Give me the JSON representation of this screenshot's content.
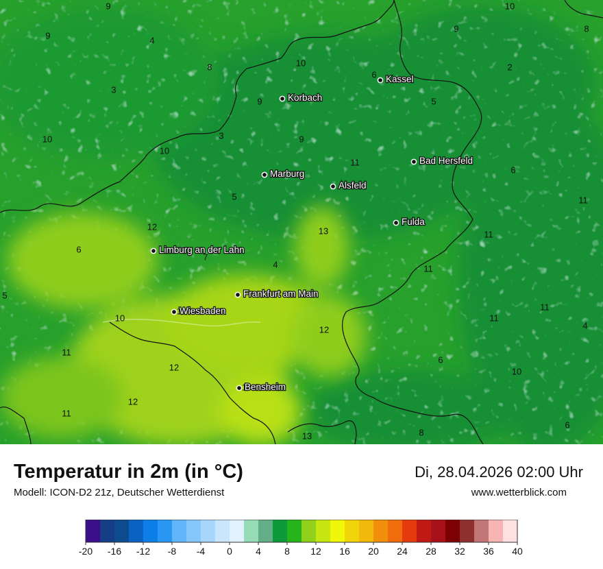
{
  "map": {
    "cities": [
      {
        "name": "Kassel"
      },
      {
        "name": "Korbach"
      },
      {
        "name": "Marburg"
      },
      {
        "name": "Alsfeld"
      },
      {
        "name": "Bad Hersfeld"
      },
      {
        "name": "Fulda"
      },
      {
        "name": "Limburg an der Lahn"
      },
      {
        "name": "Frankfurt am Main"
      },
      {
        "name": "Wiesbaden"
      },
      {
        "name": "Bensheim"
      }
    ],
    "value_labels": [
      "9",
      "10",
      "9",
      "9",
      "8",
      "4",
      "8",
      "10",
      "6",
      "2",
      "3",
      "9",
      "5",
      "10",
      "3",
      "9",
      "10",
      "11",
      "6",
      "5",
      "11",
      "12",
      "13",
      "6",
      "7",
      "4",
      "11",
      "11",
      "5",
      "10",
      "11",
      "12",
      "11",
      "11",
      "10",
      "6",
      "8",
      "12",
      "12",
      "11",
      "13",
      "6",
      "4",
      "13",
      "14"
    ]
  },
  "footer": {
    "title": "Temperatur in 2m (in °C)",
    "model": "Modell: ICON-D2 21z, Deutscher Wetterdienst",
    "datetime": "Di, 28.04.2026 02:00 Uhr",
    "website": "www.wetterblick.com"
  },
  "legend": {
    "min": -20,
    "max": 40,
    "step": 2,
    "tick_labels": [
      "-20",
      "-16",
      "-12",
      "-8",
      "-4",
      "0",
      "4",
      "8",
      "12",
      "16",
      "20",
      "24",
      "28",
      "32",
      "36",
      "40"
    ],
    "colors": [
      "#3b0f8c",
      "#163e86",
      "#0d4b8f",
      "#0a63c2",
      "#0b7ee8",
      "#2996f4",
      "#62b4fb",
      "#86c6fb",
      "#a9d6fc",
      "#c9e6fd",
      "#e2f1fe",
      "#97dcb6",
      "#63ad88",
      "#0c9a3a",
      "#27b31a",
      "#8fd11b",
      "#c6e810",
      "#f1f709",
      "#f1d40a",
      "#f1b90b",
      "#f18f0c",
      "#f06c0d",
      "#e43a0e",
      "#c11a14",
      "#a8111a",
      "#7d0002",
      "#8f302f",
      "#c27675",
      "#f6b4b2",
      "#fde1e1"
    ]
  },
  "colors": {
    "water": "#ffffff",
    "label_text": "#ffffff"
  }
}
